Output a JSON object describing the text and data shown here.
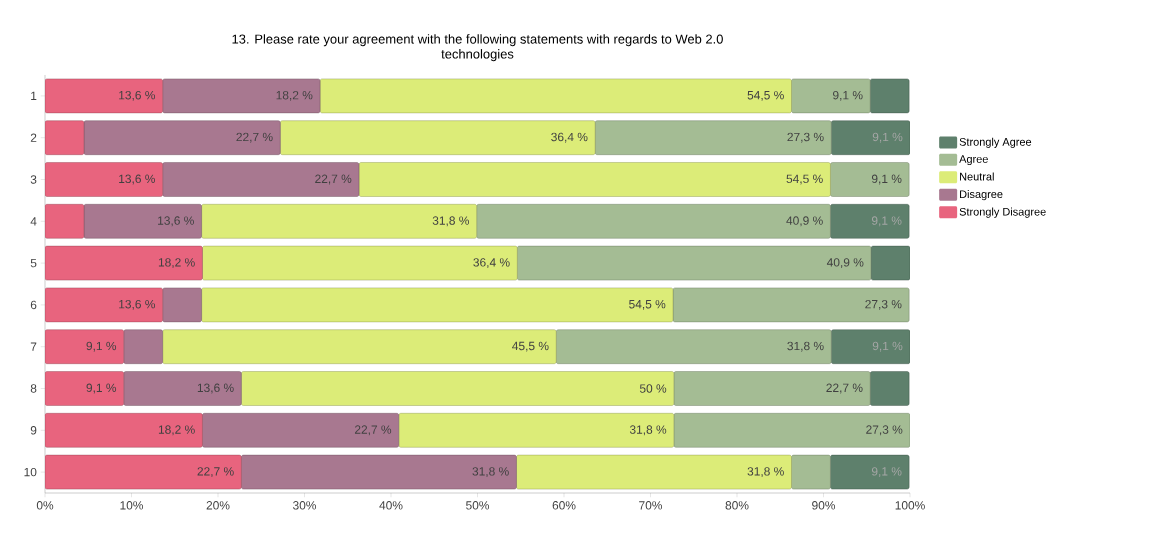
{
  "chart_data": {
    "type": "bar",
    "orientation": "horizontal",
    "stacked": true,
    "title": "13. Please rate your agreement with the following statements with regards to Web 2.0 technologies",
    "categories": [
      "1",
      "2",
      "3",
      "4",
      "5",
      "6",
      "7",
      "8",
      "9",
      "10"
    ],
    "series": [
      {
        "name": "Strongly Disagree",
        "color": "#e8647e",
        "values": [
          13.6,
          4.5,
          13.6,
          4.5,
          18.2,
          13.6,
          9.1,
          9.1,
          18.2,
          22.7
        ],
        "value_labels": [
          "13,6 %",
          null,
          "13,6 %",
          null,
          "18,2 %",
          "13,6 %",
          "9,1 %",
          "9,1 %",
          "18,2 %",
          "22,7 %"
        ]
      },
      {
        "name": "Disagree",
        "color": "#a87890",
        "values": [
          18.2,
          22.7,
          22.7,
          13.6,
          0,
          4.5,
          4.5,
          13.6,
          22.7,
          31.8
        ],
        "value_labels": [
          "18,2 %",
          "22,7 %",
          "22,7 %",
          "13,6 %",
          null,
          null,
          null,
          "13,6 %",
          "22,7 %",
          "31,8 %"
        ]
      },
      {
        "name": "Neutral",
        "color": "#dcec78",
        "values": [
          54.5,
          36.4,
          54.5,
          31.8,
          36.4,
          54.5,
          45.5,
          50,
          31.8,
          31.8
        ],
        "value_labels": [
          "54,5 %",
          "36,4 %",
          "54,5 %",
          "31,8 %",
          "36,4 %",
          "54,5 %",
          "45,5 %",
          "50 %",
          "31,8 %",
          "31,8 %"
        ]
      },
      {
        "name": "Agree",
        "color": "#a4bc94",
        "values": [
          9.1,
          27.3,
          9.1,
          40.9,
          40.9,
          27.3,
          31.8,
          22.7,
          27.3,
          4.5
        ],
        "value_labels": [
          "9,1 %",
          "27,3 %",
          "9,1 %",
          "40,9 %",
          "40,9 %",
          "27,3 %",
          "31,8 %",
          "22,7 %",
          "27,3 %",
          null
        ]
      },
      {
        "name": "Strongly Agree",
        "color": "#5e806c",
        "values": [
          4.5,
          9.1,
          0,
          9.1,
          4.5,
          0,
          9.1,
          4.5,
          0,
          9.1
        ],
        "value_labels": [
          null,
          "9,1 %",
          null,
          "9,1 %",
          null,
          null,
          "9,1 %",
          null,
          null,
          "9,1 %"
        ]
      }
    ],
    "xlim": [
      0,
      100
    ],
    "xticks": [
      {
        "value": 0,
        "label": "0%"
      },
      {
        "value": 10,
        "label": "10%"
      },
      {
        "value": 20,
        "label": "20%"
      },
      {
        "value": 30,
        "label": "30%"
      },
      {
        "value": 40,
        "label": "40%"
      },
      {
        "value": 50,
        "label": "50%"
      },
      {
        "value": 60,
        "label": "60%"
      },
      {
        "value": 70,
        "label": "70%"
      },
      {
        "value": 80,
        "label": "80%"
      },
      {
        "value": 90,
        "label": "90%"
      },
      {
        "value": 100,
        "label": "100%"
      }
    ],
    "legend": "right",
    "grid": false
  }
}
